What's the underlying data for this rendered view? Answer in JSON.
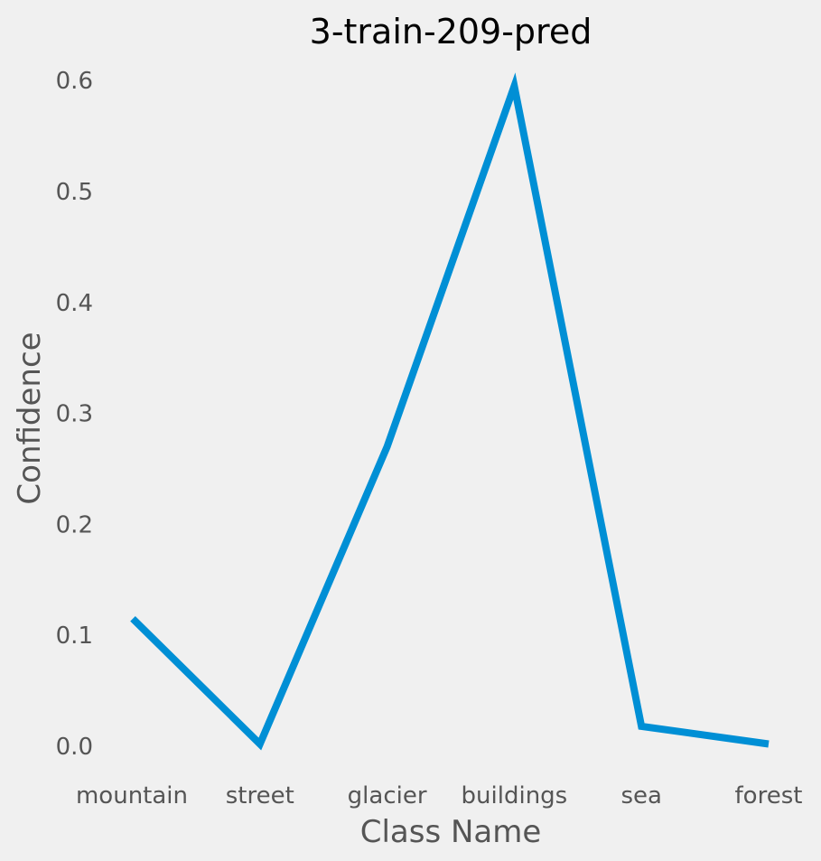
{
  "chart_data": {
    "type": "line",
    "title": "3-train-209-pred",
    "xlabel": "Class Name",
    "ylabel": "Confidence",
    "categories": [
      "mountain",
      "street",
      "glacier",
      "buildings",
      "sea",
      "forest"
    ],
    "series": [
      {
        "values": [
          0.115,
          0.002,
          0.27,
          0.595,
          0.018,
          0.002
        ],
        "color": "#008fd5"
      }
    ],
    "yticks": [
      "0.0",
      "0.1",
      "0.2",
      "0.3",
      "0.4",
      "0.5",
      "0.6"
    ],
    "grid": false,
    "background": "#f0f0f0"
  }
}
